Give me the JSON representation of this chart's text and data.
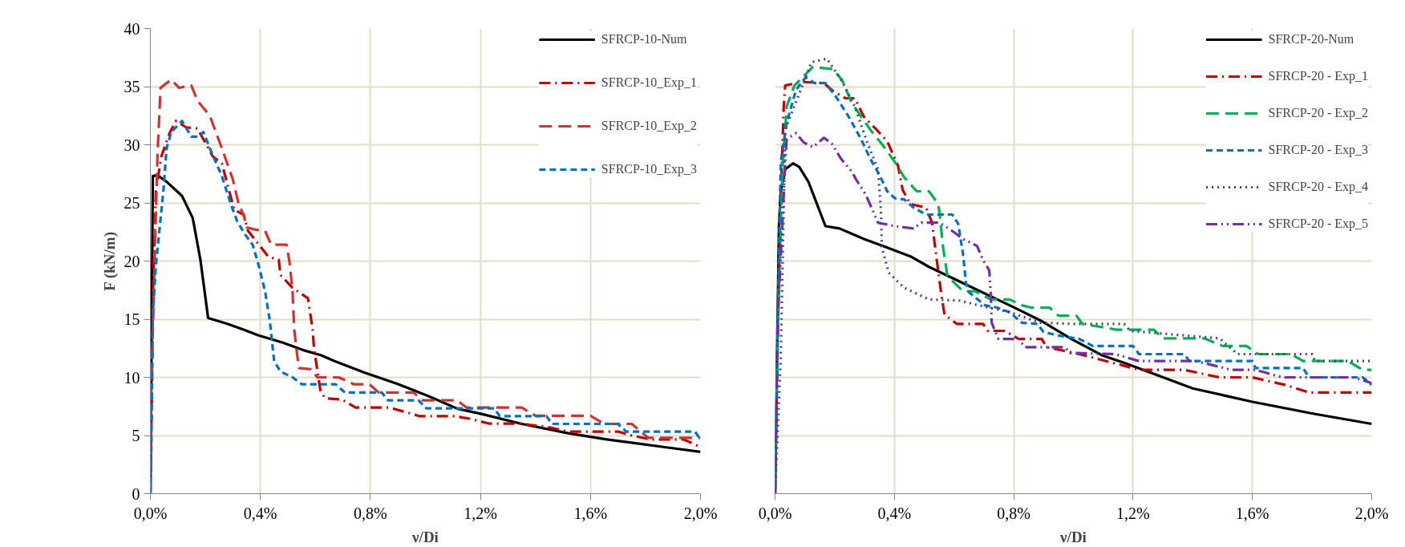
{
  "chart_data": [
    {
      "type": "line",
      "xlabel": "ν/Di",
      "ylabel": "F (kN/m)",
      "xlim": [
        0,
        2
      ],
      "ylim": [
        0,
        40
      ],
      "xticks": [
        {
          "value": 0,
          "label": "0,0%"
        },
        {
          "value": 0.4,
          "label": "0,4%"
        },
        {
          "value": 0.8,
          "label": "0,8%"
        },
        {
          "value": 1.2,
          "label": "1,2%"
        },
        {
          "value": 1.6,
          "label": "1,6%"
        },
        {
          "value": 2.0,
          "label": "2,0%"
        }
      ],
      "yticks": [
        0,
        5,
        10,
        15,
        20,
        25,
        30,
        35,
        40
      ],
      "grid": true,
      "legend": "top right",
      "series": [
        {
          "name": "SFRCP-10-Num",
          "color": "#000000",
          "line_style": "solid",
          "x": [
            0,
            0.009,
            0.025,
            0.06,
            0.115,
            0.154,
            0.182,
            0.21,
            0.28,
            0.339,
            0.394,
            0.48,
            0.562,
            0.621,
            0.67,
            0.78,
            0.897,
            1.01,
            1.117,
            1.204,
            1.35,
            1.519,
            1.65,
            1.743,
            1.87,
            2.0
          ],
          "values": [
            0,
            27.3,
            27.4,
            26.8,
            25.6,
            23.7,
            20.1,
            15.1,
            14.6,
            14.1,
            13.6,
            13.0,
            12.3,
            11.9,
            11.4,
            10.4,
            9.45,
            8.4,
            7.3,
            6.85,
            6.0,
            5.2,
            4.7,
            4.4,
            4.0,
            3.6
          ]
        },
        {
          "name": "SFRCP-10_Exp_1",
          "color": "#c00000",
          "line_style": "dashdot",
          "x": [
            0,
            0.005,
            0.01,
            0.02,
            0.04,
            0.07,
            0.093,
            0.13,
            0.171,
            0.227,
            0.26,
            0.305,
            0.339,
            0.355,
            0.428,
            0.467,
            0.473,
            0.517,
            0.573,
            0.59,
            0.595,
            0.618,
            0.635,
            0.696,
            0.746,
            0.869,
            0.93,
            0.98,
            1.108,
            1.17,
            1.23,
            1.34,
            1.45,
            1.52,
            1.7,
            1.75,
            1.82,
            1.94,
            2.0
          ],
          "values": [
            0,
            8,
            18,
            26,
            29,
            31,
            32.05,
            31.5,
            31.4,
            29.0,
            28.4,
            24.4,
            24.0,
            22.6,
            20.4,
            20.1,
            18.8,
            17.7,
            16.8,
            14.1,
            12.5,
            8.9,
            8.2,
            8.1,
            7.4,
            7.4,
            7.0,
            6.66,
            6.66,
            6.4,
            6.03,
            6.03,
            5.7,
            5.34,
            5.34,
            5.0,
            4.66,
            4.66,
            4.0
          ]
        },
        {
          "name": "SFRCP-10_Exp_2",
          "color": "#cc3333",
          "line_style": "longdash",
          "x": [
            0,
            0.003,
            0.015,
            0.026,
            0.037,
            0.076,
            0.104,
            0.149,
            0.171,
            0.216,
            0.26,
            0.3,
            0.322,
            0.339,
            0.35,
            0.383,
            0.417,
            0.439,
            0.495,
            0.506,
            0.517,
            0.523,
            0.534,
            0.54,
            0.584,
            0.607,
            0.685,
            0.741,
            0.797,
            0.83,
            0.956,
            0.99,
            1.114,
            1.15,
            1.35,
            1.4,
            1.6,
            1.65,
            1.75,
            1.81,
            1.945,
            2.0
          ],
          "values": [
            0,
            8.6,
            19.6,
            29.2,
            34.9,
            35.6,
            34.9,
            35.1,
            33.8,
            32.5,
            29.7,
            27.0,
            24.8,
            24.0,
            22.9,
            22.7,
            22.6,
            21.4,
            21.4,
            19.9,
            17.4,
            14.1,
            11.9,
            10.8,
            10.7,
            10.0,
            10.0,
            9.4,
            9.4,
            8.7,
            8.7,
            8.03,
            8.03,
            7.4,
            7.4,
            6.7,
            6.7,
            6.0,
            6.0,
            4.8,
            4.8,
            4.8
          ]
        },
        {
          "name": "SFRCP-10_Exp_3",
          "color": "#0070c0",
          "line_style": "dashed",
          "x": [
            0,
            0.003,
            0.009,
            0.02,
            0.048,
            0.059,
            0.076,
            0.115,
            0.149,
            0.177,
            0.193,
            0.216,
            0.26,
            0.294,
            0.316,
            0.344,
            0.372,
            0.394,
            0.417,
            0.434,
            0.45,
            0.473,
            0.517,
            0.551,
            0.674,
            0.707,
            0.841,
            0.864,
            0.975,
            1.003,
            1.25,
            1.27,
            1.44,
            1.46,
            1.7,
            1.73,
            1.98,
            2.0
          ],
          "values": [
            0,
            3.2,
            15.5,
            19.6,
            26.2,
            29.7,
            31.1,
            32.05,
            30.7,
            30.7,
            31.1,
            29.7,
            27.3,
            24.8,
            23.4,
            22.3,
            21.4,
            19.6,
            17.4,
            14.9,
            11.4,
            10.5,
            10.0,
            9.4,
            9.4,
            8.7,
            8.7,
            8.03,
            8.03,
            7.34,
            7.34,
            6.66,
            6.66,
            6.0,
            6.0,
            5.34,
            5.34,
            4.66
          ]
        }
      ]
    },
    {
      "type": "line",
      "xlabel": "ν/Di",
      "xlim": [
        0,
        2
      ],
      "ylim": [
        0,
        40
      ],
      "xticks": [
        {
          "value": 0,
          "label": "0,0%"
        },
        {
          "value": 0.4,
          "label": "0,4%"
        },
        {
          "value": 0.8,
          "label": "0,8%"
        },
        {
          "value": 1.2,
          "label": "1,2%"
        },
        {
          "value": 1.6,
          "label": "1,6%"
        },
        {
          "value": 2.0,
          "label": "2,0%"
        }
      ],
      "yticks": [
        0,
        5,
        10,
        15,
        20,
        25,
        30,
        35,
        40
      ],
      "grid": true,
      "legend": "top right",
      "tick_labels": "x",
      "series": [
        {
          "name": "SFRCP-20-Num",
          "color": "#000000",
          "line_style": "solid",
          "x": [
            0,
            0.013,
            0.019,
            0.034,
            0.06,
            0.081,
            0.112,
            0.169,
            0.216,
            0.298,
            0.371,
            0.454,
            0.516,
            0.63,
            0.786,
            0.889,
            0.993,
            1.096,
            1.175,
            1.4,
            1.6,
            1.8,
            2.0
          ],
          "values": [
            0,
            22.9,
            26,
            27.9,
            28.4,
            28.1,
            26.8,
            23.0,
            22.8,
            21.9,
            21.2,
            20.4,
            19.5,
            18.1,
            16.2,
            14.9,
            13.3,
            11.9,
            11.2,
            9.05,
            7.9,
            6.9,
            6.0
          ]
        },
        {
          "name": "SFRCP-20 - Exp_1",
          "color": "#c00000",
          "line_style": "dashdot",
          "x": [
            0,
            0.01,
            0.02,
            0.029,
            0.034,
            0.091,
            0.164,
            0.195,
            0.236,
            0.267,
            0.298,
            0.34,
            0.376,
            0.412,
            0.428,
            0.454,
            0.506,
            0.526,
            0.542,
            0.558,
            0.568,
            0.609,
            0.697,
            0.713,
            0.77,
            0.817,
            0.894,
            0.91,
            1.02,
            1.11,
            1.22,
            1.37,
            1.49,
            1.6,
            1.71,
            1.79,
            2.0
          ],
          "values": [
            0,
            15,
            26,
            33.3,
            35.1,
            35.4,
            35.3,
            34.6,
            34.0,
            34.0,
            32.4,
            31.3,
            30.3,
            28.2,
            26.1,
            24.9,
            24.6,
            23.3,
            20.1,
            17.0,
            15.4,
            14.6,
            14.6,
            14.0,
            14.0,
            13.3,
            13.3,
            12.6,
            12.0,
            11.4,
            10.65,
            10.65,
            10.0,
            10.0,
            9.35,
            8.7,
            8.7
          ]
        },
        {
          "name": "SFRCP-20 - Exp_2",
          "color": "#00b050",
          "line_style": "longdash",
          "x": [
            0,
            0.01,
            0.025,
            0.039,
            0.065,
            0.127,
            0.195,
            0.226,
            0.257,
            0.319,
            0.36,
            0.402,
            0.433,
            0.475,
            0.516,
            0.547,
            0.552,
            0.563,
            0.578,
            0.63,
            0.67,
            0.723,
            0.786,
            0.827,
            0.858,
            0.92,
            0.95,
            1.01,
            1.03,
            1.146,
            1.27,
            1.3,
            1.44,
            1.5,
            1.58,
            1.62,
            1.73,
            1.77,
            1.92,
            1.97,
            2.0
          ],
          "values": [
            0,
            15,
            28,
            33.3,
            35.1,
            36.7,
            36.5,
            35.5,
            33.6,
            31.3,
            30.0,
            28.5,
            27.2,
            26.0,
            26.0,
            24.9,
            24.0,
            21.2,
            18.7,
            17.4,
            17.4,
            16.7,
            16.7,
            16.2,
            16.0,
            16.0,
            15.3,
            15.3,
            14.6,
            14.1,
            14.1,
            13.35,
            13.35,
            12.7,
            12.7,
            12.0,
            12.0,
            11.4,
            11.4,
            10.65,
            10.65
          ]
        },
        {
          "name": "SFRCP-20 - Exp_3",
          "color": "#0070c0",
          "line_style": "dashed",
          "x": [
            0,
            0.01,
            0.019,
            0.039,
            0.07,
            0.102,
            0.133,
            0.169,
            0.205,
            0.247,
            0.288,
            0.319,
            0.35,
            0.376,
            0.402,
            0.433,
            0.464,
            0.506,
            0.594,
            0.614,
            0.63,
            0.64,
            0.651,
            0.703,
            0.744,
            0.786,
            0.827,
            0.879,
            0.9,
            0.95,
            1.02,
            1.065,
            1.2,
            1.22,
            1.37,
            1.39,
            1.6,
            1.61,
            1.77,
            1.79,
            1.97,
            2.0
          ],
          "values": [
            0,
            16,
            28.5,
            31.9,
            34.7,
            35.8,
            35.3,
            35.3,
            34.1,
            32.4,
            30.5,
            28.8,
            27.4,
            26.0,
            25.4,
            25.3,
            24.6,
            24.0,
            24.0,
            23.2,
            20.6,
            18.1,
            17.3,
            16.2,
            16.0,
            15.6,
            14.7,
            14.6,
            13.9,
            13.6,
            13.3,
            12.7,
            12.7,
            12.0,
            12.0,
            11.4,
            11.4,
            10.8,
            10.8,
            10.0,
            10.0,
            9.35
          ]
        },
        {
          "name": "SFRCP-20 - Exp_4",
          "color": "#3a4a70",
          "line_style": "dotted",
          "x": [
            0,
            0.019,
            0.034,
            0.081,
            0.122,
            0.174,
            0.226,
            0.267,
            0.309,
            0.345,
            0.355,
            0.358,
            0.381,
            0.433,
            0.516,
            0.62,
            0.682,
            0.786,
            0.889,
            0.993,
            1.17,
            1.19,
            1.49,
            1.55,
            1.8,
            1.81,
            2.0
          ],
          "values": [
            0,
            11.7,
            31.3,
            34.4,
            37.1,
            37.4,
            35.4,
            33.3,
            30.2,
            27.9,
            24.3,
            21.2,
            19.0,
            17.7,
            16.7,
            16.6,
            16.2,
            15.6,
            14.7,
            14.6,
            14.6,
            14.0,
            13.35,
            12.0,
            12.0,
            11.4,
            11.4
          ]
        },
        {
          "name": "SFRCP-20 - Exp_5",
          "color": "#7030a0",
          "line_style": "dashdotdot",
          "x": [
            0,
            0.008,
            0.024,
            0.034,
            0.039,
            0.07,
            0.096,
            0.127,
            0.164,
            0.19,
            0.221,
            0.257,
            0.272,
            0.304,
            0.33,
            0.345,
            0.402,
            0.464,
            0.49,
            0.552,
            0.599,
            0.63,
            0.677,
            0.697,
            0.718,
            0.723,
            0.726,
            0.749,
            0.817,
            0.837,
            0.97,
            0.99,
            1.14,
            1.22,
            1.41,
            1.53,
            1.61,
            1.7,
            1.94,
            2.0
          ],
          "values": [
            0,
            14.5,
            22.9,
            28.5,
            30.5,
            31.0,
            30.2,
            29.8,
            30.6,
            30.1,
            28.8,
            27.7,
            27.0,
            25.7,
            24.2,
            23.3,
            23.0,
            22.8,
            23.3,
            23.3,
            22.5,
            21.9,
            21.3,
            20.1,
            19.2,
            17.3,
            14.7,
            13.3,
            13.3,
            12.6,
            12.6,
            12.1,
            12.0,
            11.4,
            11.4,
            10.65,
            10.65,
            10.0,
            10.0,
            9.5
          ]
        }
      ]
    }
  ]
}
